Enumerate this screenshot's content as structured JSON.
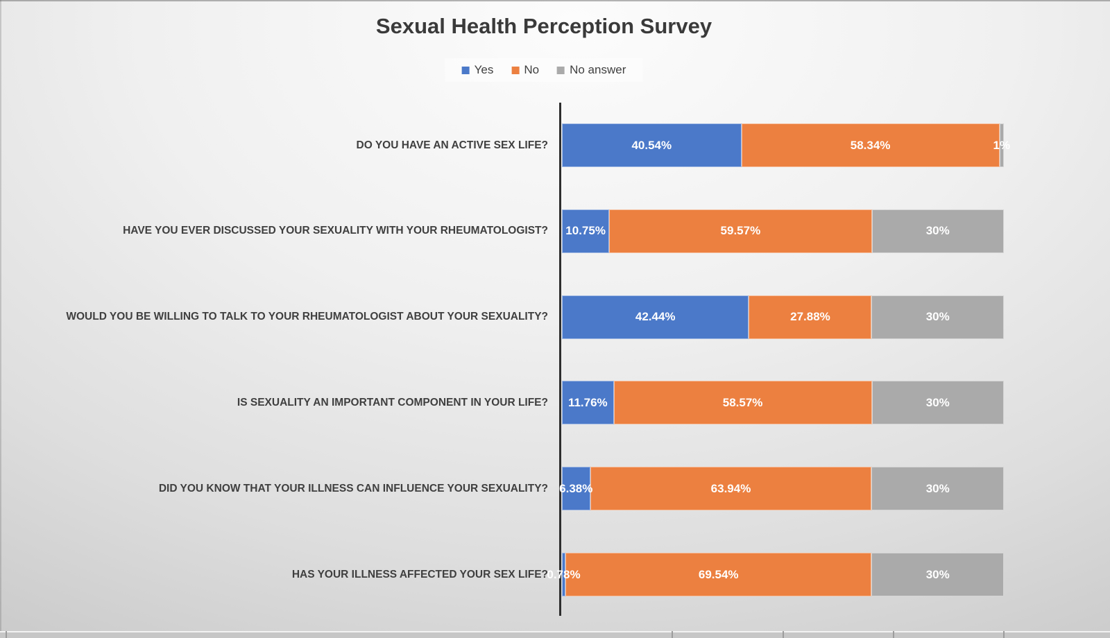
{
  "chart_data": {
    "type": "bar",
    "subtype": "stacked-horizontal-100-percent",
    "title": "Sexual Health Perception Survey",
    "legend": {
      "position": "top",
      "entries": [
        {
          "name": "Yes",
          "color": "#4b79c9"
        },
        {
          "name": "No",
          "color": "#ec8040"
        },
        {
          "name": "No answer",
          "color": "#aaaaaa"
        }
      ]
    },
    "categories": [
      "DO YOU HAVE AN ACTIVE SEX LIFE?",
      "HAVE YOU EVER DISCUSSED YOUR SEXUALITY WITH YOUR RHEUMATOLOGIST?",
      "WOULD YOU BE WILLING TO TALK TO YOUR RHEUMATOLOGIST ABOUT YOUR SEXUALITY?",
      "IS SEXUALITY AN IMPORTANT COMPONENT IN YOUR LIFE?",
      "DID YOU KNOW THAT YOUR ILLNESS CAN INFLUENCE YOUR SEXUALITY?",
      "HAS YOUR ILLNESS AFFECTED YOUR SEX LIFE?"
    ],
    "series": [
      {
        "name": "Yes",
        "color": "#4b79c9",
        "values": [
          40.54,
          10.75,
          42.44,
          11.76,
          6.38,
          0.78
        ],
        "labels": [
          "40.54%",
          "10.75%",
          "42.44%",
          "11.76%",
          "6.38%",
          "0.78%"
        ]
      },
      {
        "name": "No",
        "color": "#ec8040",
        "values": [
          58.34,
          59.57,
          27.88,
          58.57,
          63.94,
          69.54
        ],
        "labels": [
          "58.34%",
          "59.57%",
          "27.88%",
          "58.57%",
          "63.94%",
          "69.54%"
        ]
      },
      {
        "name": "No answer",
        "color": "#aaaaaa",
        "values": [
          1,
          30,
          30,
          30,
          30,
          30
        ],
        "labels": [
          "1%",
          "30%",
          "30%",
          "30%",
          "30%",
          "30%"
        ]
      }
    ],
    "axis": {
      "min": 0,
      "max": 100,
      "unit": "percent",
      "gridlines": false
    },
    "data_label_color": "#ffffff",
    "category_label_color": "#3f3f3f",
    "title_color": "#3a3a3a"
  }
}
